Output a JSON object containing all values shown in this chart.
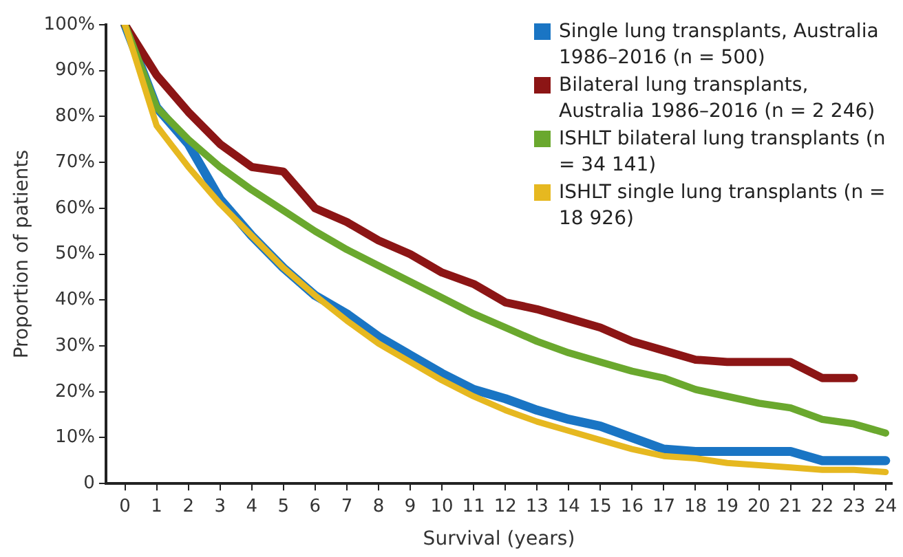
{
  "chart_data": {
    "type": "line",
    "xlabel": "Survival (years)",
    "ylabel": "Proportion of patients",
    "x": [
      0,
      1,
      2,
      3,
      4,
      5,
      6,
      7,
      8,
      9,
      10,
      11,
      12,
      13,
      14,
      15,
      16,
      17,
      18,
      19,
      20,
      21,
      22,
      23,
      24
    ],
    "xlim": [
      -0.6,
      24.2
    ],
    "xticks": [
      0,
      1,
      2,
      3,
      4,
      5,
      6,
      7,
      8,
      9,
      10,
      11,
      12,
      13,
      14,
      15,
      16,
      17,
      18,
      19,
      20,
      21,
      22,
      23,
      24
    ],
    "ylim": [
      0,
      100
    ],
    "yticks": [
      {
        "value": 0,
        "label": "0"
      },
      {
        "value": 10,
        "label": "10%"
      },
      {
        "value": 20,
        "label": "20%"
      },
      {
        "value": 30,
        "label": "30%"
      },
      {
        "value": 40,
        "label": "40%"
      },
      {
        "value": 50,
        "label": "50%"
      },
      {
        "value": 60,
        "label": "60%"
      },
      {
        "value": 70,
        "label": "70%"
      },
      {
        "value": 80,
        "label": "80%"
      },
      {
        "value": 90,
        "label": "90%"
      },
      {
        "value": 100,
        "label": "100%"
      }
    ],
    "grid": false,
    "legend": "top right",
    "marker": "none",
    "line_style": "solid",
    "series": [
      {
        "name": "Single lung transplants, Australia 1986–2016 (n = 500)",
        "color": "#1a75c4",
        "values": [
          100,
          82,
          74,
          62,
          54,
          47,
          41,
          37,
          32,
          28,
          24,
          20.5,
          18.5,
          16,
          14,
          12.5,
          10,
          7.5,
          7,
          7,
          7,
          7,
          5,
          5,
          5
        ]
      },
      {
        "name": "Bilateral lung transplants, Australia 1986–2016 (n = 2 246)",
        "color": "#8c1515",
        "values": [
          100,
          89,
          81,
          74,
          69,
          68,
          60,
          57,
          53,
          50,
          46,
          43.5,
          39.5,
          38,
          36,
          34,
          31,
          29,
          27,
          26.5,
          26.5,
          26.5,
          23,
          23,
          null
        ]
      },
      {
        "name": "ISHLT bilateral lung transplants (n = 34 141)",
        "color": "#6aa82e",
        "values": [
          100,
          82,
          75,
          69,
          64,
          59.5,
          55,
          51,
          47.5,
          44,
          40.5,
          37,
          34,
          31,
          28.5,
          26.5,
          24.5,
          23,
          20.5,
          19,
          17.5,
          16.5,
          14,
          13,
          11
        ]
      },
      {
        "name": "ISHLT single lung transplants (n = 18 926)",
        "color": "#e6b820",
        "values": [
          100,
          78,
          69,
          61,
          54,
          47,
          41,
          35.5,
          30.5,
          26.5,
          22.5,
          19,
          16,
          13.5,
          11.5,
          9.5,
          7.5,
          6,
          5.5,
          4.5,
          4,
          3.5,
          3,
          3,
          2.5
        ]
      }
    ]
  }
}
